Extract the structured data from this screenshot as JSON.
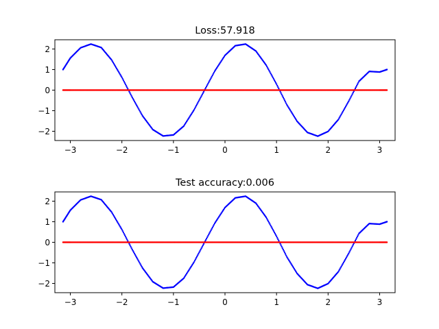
{
  "chart_data": [
    {
      "type": "scatter",
      "title": "Loss:57.918",
      "xlabel": "",
      "ylabel": "",
      "xlim": [
        -3.3,
        3.3
      ],
      "ylim": [
        -2.45,
        2.45
      ],
      "xticks": [
        -3,
        -2,
        -1,
        0,
        1,
        2,
        3
      ],
      "yticks": [
        -2,
        -1,
        0,
        1,
        2
      ],
      "xtick_labels": [
        "−3",
        "−2",
        "−1",
        "0",
        "1",
        "2",
        "3"
      ],
      "ytick_labels": [
        "−2",
        "−1",
        "0",
        "1",
        "2"
      ],
      "grid": false,
      "series": [
        {
          "color": "#0000ff",
          "x": [
            -3.1416,
            -3.0,
            -2.8,
            -2.6,
            -2.4,
            -2.2,
            -2.0,
            -1.8,
            -1.6,
            -1.4,
            -1.2,
            -1.0,
            -0.8,
            -0.6,
            -0.4,
            -0.2,
            0.0,
            0.2,
            0.4,
            0.6,
            0.8,
            1.0,
            1.2,
            1.4,
            1.6,
            1.8,
            2.0,
            2.2,
            2.4,
            2.6,
            2.8,
            3.0,
            3.1416
          ],
          "y": [
            1.0,
            1.56,
            2.06,
            2.24,
            2.07,
            1.47,
            0.62,
            -0.35,
            -1.25,
            -1.92,
            -2.23,
            -2.18,
            -1.75,
            -0.96,
            -0.02,
            0.92,
            1.69,
            2.16,
            2.24,
            1.9,
            1.21,
            0.29,
            -0.71,
            -1.52,
            -2.06,
            -2.24,
            -2.01,
            -1.43,
            -0.54,
            0.43,
            0.91,
            0.88,
            1.0
          ]
        },
        {
          "color": "#ff0000",
          "x": [
            -3.1416,
            -3.0,
            -2.8,
            -2.6,
            -2.4,
            -2.2,
            -2.0,
            -1.8,
            -1.6,
            -1.4,
            -1.2,
            -1.0,
            -0.8,
            -0.6,
            -0.4,
            -0.2,
            0.0,
            0.2,
            0.4,
            0.6,
            0.8,
            1.0,
            1.2,
            1.4,
            1.6,
            1.8,
            2.0,
            2.2,
            2.4,
            2.6,
            2.8,
            3.0,
            3.1416
          ],
          "y": [
            0,
            0,
            0,
            0,
            0,
            0,
            0,
            0,
            0,
            0,
            0,
            0,
            0,
            0,
            0,
            0,
            0,
            0,
            0,
            0,
            0,
            0,
            0,
            0,
            0,
            0,
            0,
            0,
            0,
            0,
            0,
            0,
            0
          ]
        }
      ]
    },
    {
      "type": "scatter",
      "title": "Test accuracy:0.006",
      "xlabel": "",
      "ylabel": "",
      "xlim": [
        -3.3,
        3.3
      ],
      "ylim": [
        -2.45,
        2.45
      ],
      "xticks": [
        -3,
        -2,
        -1,
        0,
        1,
        2,
        3
      ],
      "yticks": [
        -2,
        -1,
        0,
        1,
        2
      ],
      "xtick_labels": [
        "−3",
        "−2",
        "−1",
        "0",
        "1",
        "2",
        "3"
      ],
      "ytick_labels": [
        "−2",
        "−1",
        "0",
        "1",
        "2"
      ],
      "grid": false,
      "series": [
        {
          "color": "#0000ff",
          "x": [
            -3.1416,
            -3.0,
            -2.8,
            -2.6,
            -2.4,
            -2.2,
            -2.0,
            -1.8,
            -1.6,
            -1.4,
            -1.2,
            -1.0,
            -0.8,
            -0.6,
            -0.4,
            -0.2,
            0.0,
            0.2,
            0.4,
            0.6,
            0.8,
            1.0,
            1.2,
            1.4,
            1.6,
            1.8,
            2.0,
            2.2,
            2.4,
            2.6,
            2.8,
            3.0,
            3.1416
          ],
          "y": [
            1.0,
            1.56,
            2.06,
            2.24,
            2.07,
            1.47,
            0.62,
            -0.35,
            -1.25,
            -1.92,
            -2.23,
            -2.18,
            -1.75,
            -0.96,
            -0.02,
            0.92,
            1.69,
            2.16,
            2.24,
            1.9,
            1.21,
            0.29,
            -0.71,
            -1.52,
            -2.06,
            -2.24,
            -2.01,
            -1.43,
            -0.54,
            0.43,
            0.91,
            0.88,
            1.0
          ]
        },
        {
          "color": "#ff0000",
          "x": [
            -3.1416,
            -3.0,
            -2.8,
            -2.6,
            -2.4,
            -2.2,
            -2.0,
            -1.8,
            -1.6,
            -1.4,
            -1.2,
            -1.0,
            -0.8,
            -0.6,
            -0.4,
            -0.2,
            0.0,
            0.2,
            0.4,
            0.6,
            0.8,
            1.0,
            1.2,
            1.4,
            1.6,
            1.8,
            2.0,
            2.2,
            2.4,
            2.6,
            2.8,
            3.0,
            3.1416
          ],
          "y": [
            0,
            0,
            0,
            0,
            0,
            0,
            0,
            0,
            0,
            0,
            0,
            0,
            0,
            0,
            0,
            0,
            0,
            0,
            0,
            0,
            0,
            0,
            0,
            0,
            0,
            0,
            0,
            0,
            0,
            0,
            0,
            0,
            0
          ]
        }
      ]
    }
  ]
}
